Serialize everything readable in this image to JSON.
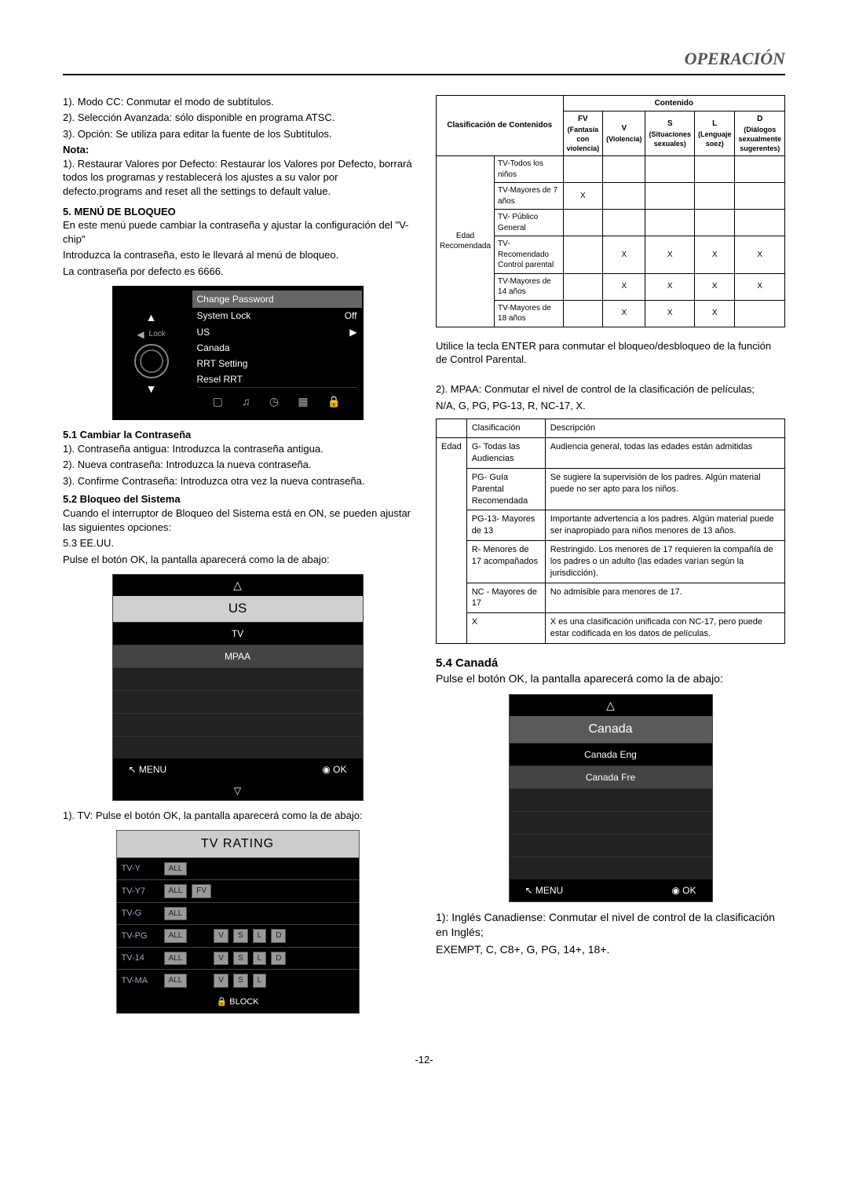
{
  "header": "OPERACIÓN",
  "left": {
    "p1": "1). Modo CC: Conmutar el modo de subtítulos.",
    "p2": "2). Selección Avanzada: sólo disponible en programa ATSC.",
    "p3": "3). Opción: Se utiliza para editar la fuente de los Subtítulos.",
    "nota": "Nota:",
    "p4": "1). Restaurar Valores por Defecto: Restaurar los Valores por Defecto, borrará todos los programas y restablecerá los ajustes a su valor por defecto.programs and reset all the settings to default value.",
    "sec5": "5. MENÚ DE BLOQUEO",
    "p5": "En este menú puede cambiar la contraseña y ajustar la configuración del \"V-chip\"",
    "p6": "Introduzca la contraseña, esto le llevará al menú de bloqueo.",
    "p7": "La contraseña por defecto es 6666.",
    "lockMenu": {
      "label": "Lock",
      "rows": [
        {
          "l": "Change Password",
          "r": ""
        },
        {
          "l": "System Lock",
          "r": "Off"
        },
        {
          "l": "US",
          "r": ""
        },
        {
          "l": "Canada",
          "r": ""
        },
        {
          "l": "RRT Setting",
          "r": ""
        },
        {
          "l": "Resel RRT",
          "r": ""
        }
      ]
    },
    "sec51": "5.1 Cambiar la Contraseña",
    "p8": "1). Contraseña antigua: Introduzca la contraseña antigua.",
    "p9": "2). Nueva contraseña: Introduzca la nueva contraseña.",
    "p10": "3). Confirme Contraseña: Introduzca otra vez la nueva contraseña.",
    "sec52": "5.2 Bloqueo del Sistema",
    "p11": "Cuando el interruptor de Bloqueo del Sistema está en ON, se pueden ajustar las siguientes opciones:",
    "p12": "5.3 EE.UU.",
    "p13": "Pulse el botón OK, la pantalla aparecerá como la de abajo:",
    "usMenu": {
      "title": "US",
      "items": [
        "TV",
        "MPAA"
      ],
      "footerL": "MENU",
      "footerR": "OK"
    },
    "p14": "1). TV: Pulse el botón OK, la pantalla aparecerá como la de abajo:",
    "tvRating": {
      "title": "TV RATING",
      "rows": [
        {
          "label": "TV-Y",
          "chips": [
            "ALL"
          ]
        },
        {
          "label": "TV-Y7",
          "chips": [
            "ALL",
            "FV"
          ]
        },
        {
          "label": "TV-G",
          "chips": [
            "ALL"
          ]
        },
        {
          "label": "TV-PG",
          "chips": [
            "ALL",
            "",
            "V",
            "S",
            "L",
            "D"
          ]
        },
        {
          "label": "TV-14",
          "chips": [
            "ALL",
            "",
            "V",
            "S",
            "L",
            "D"
          ]
        },
        {
          "label": "TV-MA",
          "chips": [
            "ALL",
            "",
            "V",
            "S",
            "L"
          ]
        }
      ],
      "footer": "BLOCK"
    }
  },
  "right": {
    "contentTable": {
      "head1": "Clasificación de Contenidos",
      "head2": "Contenido",
      "cols": [
        {
          "t": "FV",
          "s": "(Fantasía con violencia)"
        },
        {
          "t": "V",
          "s": "(Violencia)"
        },
        {
          "t": "S",
          "s": "(Situaciones sexuales)"
        },
        {
          "t": "L",
          "s": "(Lenguaje soez)"
        },
        {
          "t": "D",
          "s": "(Diálogos sexualmente sugerentes)"
        }
      ],
      "rowCat": "Edad Recomendada",
      "rows": [
        {
          "l": "TV-Todos los niños",
          "cells": [
            "",
            "",
            "",
            "",
            ""
          ]
        },
        {
          "l": "TV-Mayores de 7 años",
          "cells": [
            "X",
            "",
            "",
            "",
            ""
          ]
        },
        {
          "l": "TV- Público General",
          "cells": [
            "",
            "",
            "",
            "",
            ""
          ]
        },
        {
          "l": "TV-Recomendado Control parental",
          "cells": [
            "",
            "X",
            "X",
            "X",
            "X"
          ]
        },
        {
          "l": "TV-Mayores de 14 años",
          "cells": [
            "",
            "X",
            "X",
            "X",
            "X"
          ]
        },
        {
          "l": "TV-Mayores de 18 años",
          "cells": [
            "",
            "X",
            "X",
            "X",
            ""
          ]
        }
      ]
    },
    "p1": "Utilice la tecla ENTER para conmutar el bloqueo/desbloqueo de la función de Control Parental.",
    "p2": "2). MPAA: Conmutar el nivel de control de la clasificación de películas;",
    "p3": "N/A, G, PG, PG-13, R, NC-17, X.",
    "mpaa": {
      "h1": "Clasificación",
      "h2": "Descripción",
      "cat": "Edad",
      "rows": [
        {
          "c": "G- Todas las Audiencias",
          "d": "Audiencia general, todas las edades están admitidas"
        },
        {
          "c": "PG- Guía Parental Recomendada",
          "d": "Se sugiere la supervisión de los padres. Algún material puede no ser apto para los  niños."
        },
        {
          "c": "PG-13- Mayores de 13",
          "d": "Importante advertencia a los padres. Algún material puede ser inapropiado para niños menores de 13 años."
        },
        {
          "c": "R- Menores de 17 acompañados",
          "d": "Restringido. Los menores de 17 requieren la compañía de los padres o un adulto (las edades varían según la jurisdicción)."
        },
        {
          "c": "NC - Mayores de 17",
          "d": "No admisible para menores de 17."
        },
        {
          "c": "X",
          "d": "X es una clasificación unificada con NC-17, pero puede estar codificada en los datos de películas."
        }
      ]
    },
    "sec54": "5.4 Canadá",
    "p4": "Pulse el botón OK, la pantalla aparecerá como la de abajo:",
    "canMenu": {
      "title": "Canada",
      "items": [
        "Canada Eng",
        "Canada Fre"
      ],
      "footerL": "MENU",
      "footerR": "OK"
    },
    "p5": "1): Inglés Canadiense: Conmutar el nivel de control de la clasificación en Inglés;",
    "p6": "EXEMPT, C, C8+, G, PG, 14+, 18+."
  },
  "pagenum": "-12-"
}
